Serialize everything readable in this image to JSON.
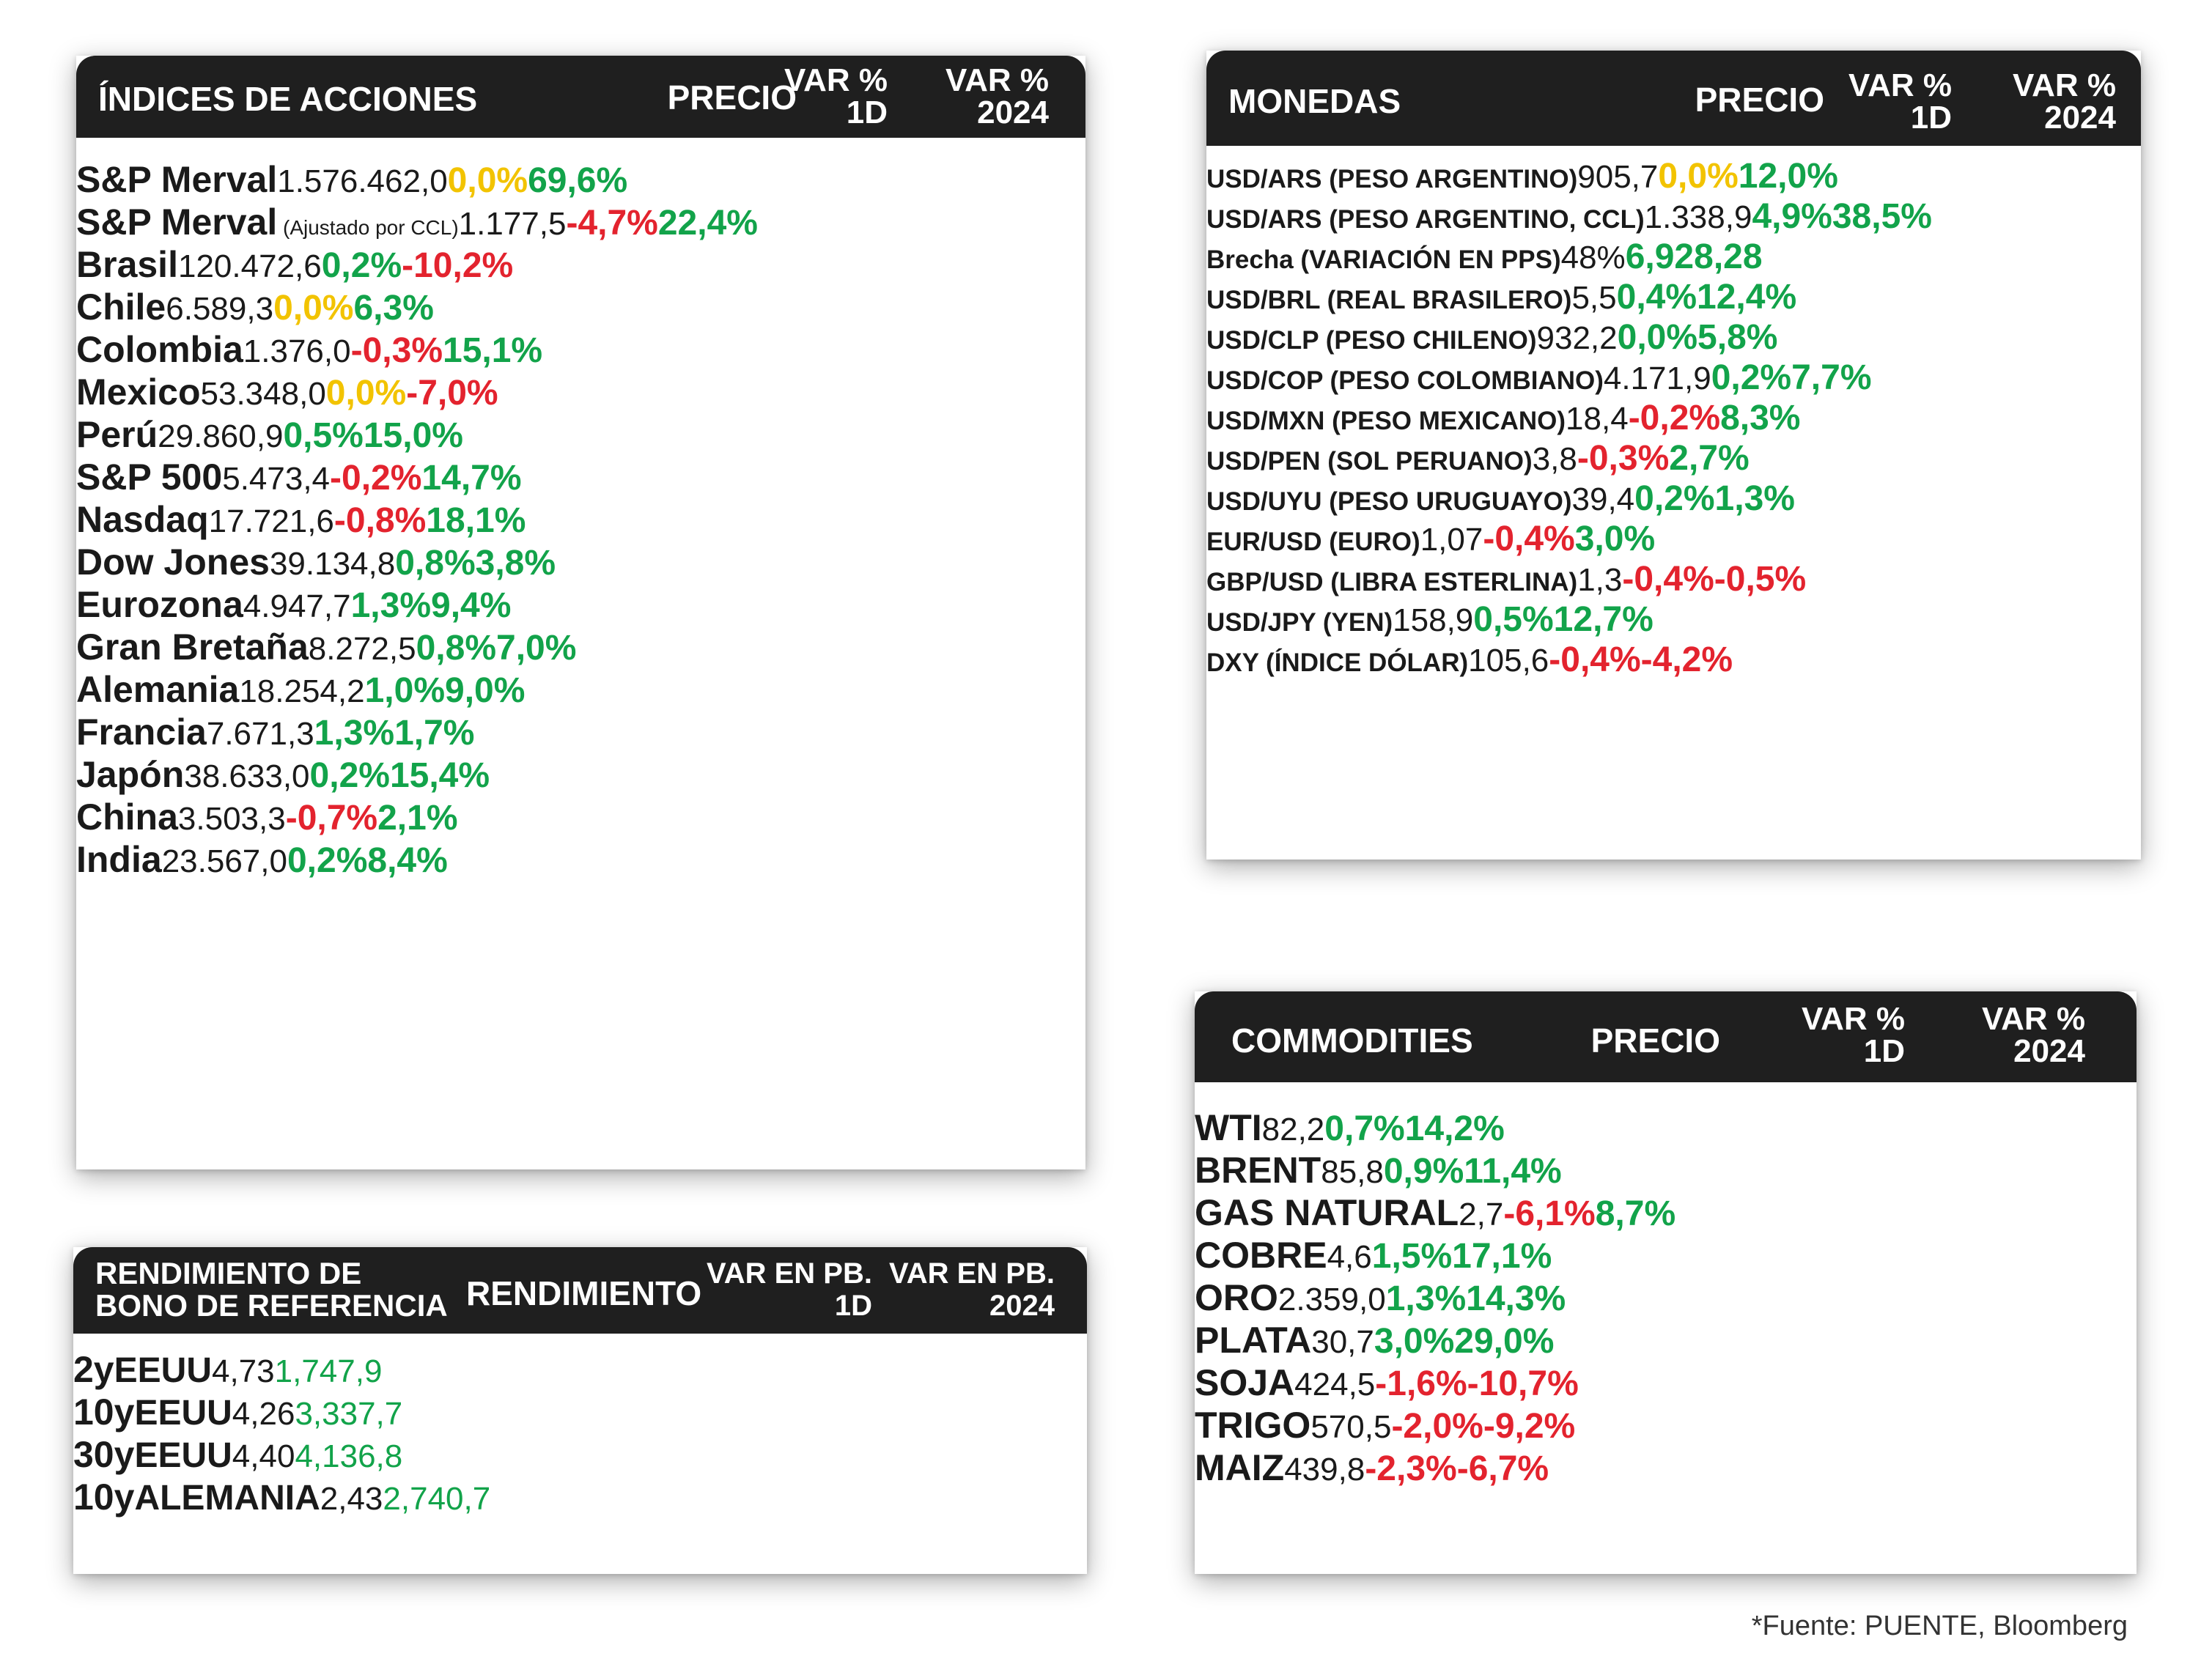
{
  "colors": {
    "header_bg": "#1f1f1f",
    "positive": "#12a34a",
    "negative": "#e3232e",
    "neutral_zero": "#f2c300",
    "text": "#1a1a1a"
  },
  "stocks": {
    "title": "ÍNDICES DE ACCIONES",
    "col_price": "PRECIO",
    "col_1d": [
      "VAR %",
      "1D"
    ],
    "col_ytd": [
      "VAR %",
      "2024"
    ],
    "groups": [
      [
        {
          "name": "S&P Merval",
          "note": "",
          "price": "1.576.462,0",
          "d1": "0,0%",
          "ytd": "69,6%"
        },
        {
          "name": "S&P Merval",
          "note": " (Ajustado por CCL)",
          "price": "1.177,5",
          "d1": "-4,7%",
          "ytd": "22,4%"
        },
        {
          "name": "Brasil",
          "note": "",
          "price": "120.472,6",
          "d1": "0,2%",
          "ytd": "-10,2%"
        },
        {
          "name": "Chile",
          "note": "",
          "price": "6.589,3",
          "d1": "0,0%",
          "ytd": "6,3%"
        },
        {
          "name": "Colombia",
          "note": "",
          "price": "1.376,0",
          "d1": "-0,3%",
          "ytd": "15,1%"
        },
        {
          "name": "Mexico",
          "note": "",
          "price": "53.348,0",
          "d1": "0,0%",
          "ytd": "-7,0%"
        },
        {
          "name": "Perú",
          "note": "",
          "price": "29.860,9",
          "d1": "0,5%",
          "ytd": "15,0%"
        }
      ],
      [
        {
          "name": "S&P 500",
          "note": "",
          "price": "5.473,4",
          "d1": "-0,2%",
          "ytd": "14,7%"
        },
        {
          "name": "Nasdaq",
          "note": "",
          "price": "17.721,6",
          "d1": "-0,8%",
          "ytd": "18,1%"
        },
        {
          "name": "Dow Jones",
          "note": "",
          "price": "39.134,8",
          "d1": "0,8%",
          "ytd": "3,8%"
        }
      ],
      [
        {
          "name": "Eurozona",
          "note": "",
          "price": "4.947,7",
          "d1": "1,3%",
          "ytd": "9,4%"
        },
        {
          "name": "Gran Bretaña",
          "note": "",
          "price": "8.272,5",
          "d1": "0,8%",
          "ytd": "7,0%"
        },
        {
          "name": "Alemania",
          "note": "",
          "price": "18.254,2",
          "d1": "1,0%",
          "ytd": "9,0%"
        },
        {
          "name": "Francia",
          "note": "",
          "price": "7.671,3",
          "d1": "1,3%",
          "ytd": "1,7%"
        }
      ],
      [
        {
          "name": "Japón",
          "note": "",
          "price": "38.633,0",
          "d1": "0,2%",
          "ytd": "15,4%"
        },
        {
          "name": "China",
          "note": "",
          "price": "3.503,3",
          "d1": "-0,7%",
          "ytd": "2,1%"
        },
        {
          "name": "India",
          "note": "",
          "price": "23.567,0",
          "d1": "0,2%",
          "ytd": "8,4%"
        }
      ]
    ]
  },
  "currencies": {
    "title": "MONEDAS",
    "col_price": "PRECIO",
    "col_1d": [
      "VAR %",
      "1D"
    ],
    "col_ytd": [
      "VAR %",
      "2024"
    ],
    "groups": [
      [
        {
          "name": "USD/ARS (PESO ARGENTINO)",
          "price": "905,7",
          "d1": "0,0%",
          "ytd": "12,0%"
        },
        {
          "name": "USD/ARS (PESO ARGENTINO, CCL)",
          "price": "1.338,9",
          "d1": "4,9%",
          "ytd": "38,5%"
        },
        {
          "name": "Brecha (VARIACIÓN EN PPS)",
          "price": "48%",
          "d1": "6,9",
          "ytd": "28,28"
        },
        {
          "name": "USD/BRL (REAL BRASILERO)",
          "price": "5,5",
          "d1": "0,4%",
          "ytd": "12,4%"
        },
        {
          "name": "USD/CLP (PESO CHILENO)",
          "price": "932,2",
          "d1": "0,0%",
          "ytd": "5,8%"
        },
        {
          "name": "USD/COP (PESO COLOMBIANO)",
          "price": "4.171,9",
          "d1": "0,2%",
          "ytd": "7,7%"
        },
        {
          "name": "USD/MXN (PESO MEXICANO)",
          "price": "18,4",
          "d1": "-0,2%",
          "ytd": "8,3%"
        },
        {
          "name": "USD/PEN (SOL PERUANO)",
          "price": "3,8",
          "d1": "-0,3%",
          "ytd": "2,7%"
        },
        {
          "name": "USD/UYU (PESO URUGUAYO)",
          "price": "39,4",
          "d1": "0,2%",
          "ytd": "1,3%"
        }
      ],
      [
        {
          "name": "EUR/USD (EURO)",
          "price": "1,07",
          "d1": "-0,4%",
          "ytd": "3,0%"
        },
        {
          "name": "GBP/USD (LIBRA ESTERLINA)",
          "price": "1,3",
          "d1": "-0,4%",
          "ytd": "-0,5%"
        },
        {
          "name": "USD/JPY (YEN)",
          "price": "158,9",
          "d1": "0,5%",
          "ytd": "12,7%"
        },
        {
          "name": "DXY (ÍNDICE DÓLAR)",
          "price": "105,6",
          "d1": "-0,4%",
          "ytd": "-4,2%"
        }
      ]
    ]
  },
  "bonds": {
    "title": [
      "RENDIMIENTO DE",
      "BONO DE REFERENCIA"
    ],
    "col_yield": "RENDIMIENTO",
    "col_1d": [
      "VAR EN PB.",
      "1D"
    ],
    "col_ytd": [
      "VAR EN PB.",
      "2024"
    ],
    "rows": [
      {
        "tenor": "2y",
        "country": "EEUU",
        "yield": "4,73",
        "d1": "1,7",
        "ytd": "47,9"
      },
      {
        "tenor": "10y",
        "country": "EEUU",
        "yield": "4,26",
        "d1": "3,3",
        "ytd": "37,7"
      },
      {
        "tenor": "30y",
        "country": "EEUU",
        "yield": "4,40",
        "d1": "4,1",
        "ytd": "36,8"
      },
      {
        "tenor": "10y",
        "country": "ALEMANIA",
        "yield": "2,43",
        "d1": "2,7",
        "ytd": "40,7"
      }
    ]
  },
  "commodities": {
    "title": "COMMODITIES",
    "col_price": "PRECIO",
    "col_1d": [
      "VAR %",
      "1D"
    ],
    "col_ytd": [
      "VAR %",
      "2024"
    ],
    "rows": [
      {
        "name": "WTI",
        "price": "82,2",
        "d1": "0,7%",
        "ytd": "14,2%"
      },
      {
        "name": "BRENT",
        "price": "85,8",
        "d1": "0,9%",
        "ytd": "11,4%"
      },
      {
        "name": "GAS NATURAL",
        "price": "2,7",
        "d1": "-6,1%",
        "ytd": "8,7%"
      },
      {
        "name": "COBRE",
        "price": "4,6",
        "d1": "1,5%",
        "ytd": "17,1%"
      },
      {
        "name": "ORO",
        "price": "2.359,0",
        "d1": "1,3%",
        "ytd": "14,3%"
      },
      {
        "name": "PLATA",
        "price": "30,7",
        "d1": "3,0%",
        "ytd": "29,0%"
      },
      {
        "name": "SOJA",
        "price": "424,5",
        "d1": "-1,6%",
        "ytd": "-10,7%"
      },
      {
        "name": "TRIGO",
        "price": "570,5",
        "d1": "-2,0%",
        "ytd": "-9,2%"
      },
      {
        "name": "MAIZ",
        "price": "439,8",
        "d1": "-2,3%",
        "ytd": "-6,7%"
      }
    ]
  },
  "source": "*Fuente: PUENTE, Bloomberg"
}
